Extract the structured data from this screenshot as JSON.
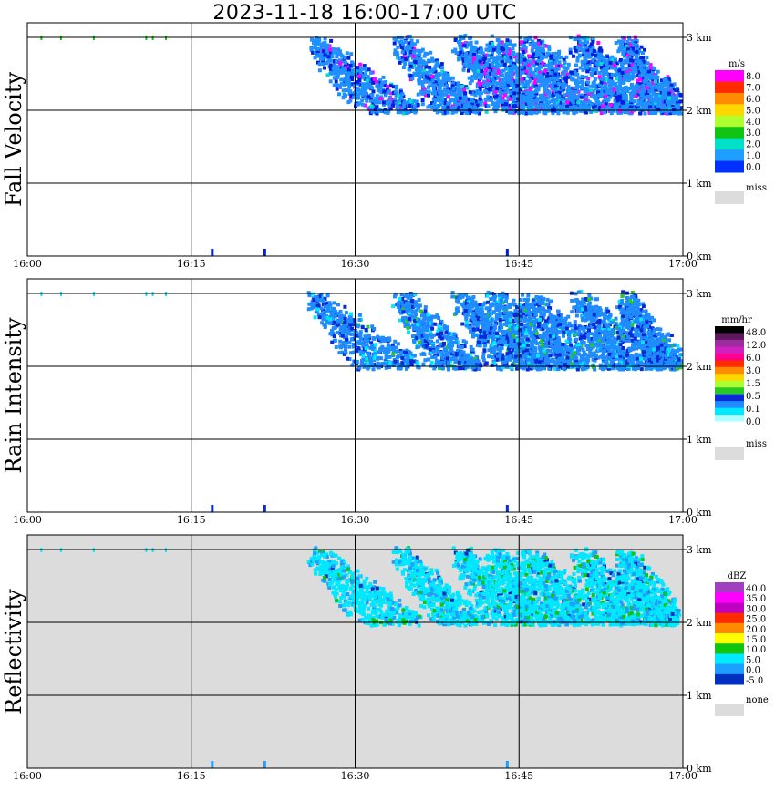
{
  "title": "2023-11-18   16:00-17:00 UTC",
  "chart_data": [
    {
      "type": "heatmap",
      "title": "Fall Velocity",
      "ylabel": "Fall Velocity",
      "x_ticks": [
        "16:00",
        "16:15",
        "16:30",
        "16:45",
        "17:00"
      ],
      "y_ticks": [
        "0 km",
        "1 km",
        "2 km",
        "3 km"
      ],
      "xlim": [
        "16:00",
        "17:00"
      ],
      "ylim_km": [
        0,
        3.2
      ],
      "grid": true,
      "background": "#ffffff",
      "legend": {
        "placement": "right",
        "unit": "m/s",
        "labels": [
          "8.0",
          "7.0",
          "6.0",
          "5.0",
          "4.0",
          "3.0",
          "2.0",
          "1.0",
          "0.0"
        ],
        "colors": [
          "#ff00ff",
          "#ff2a00",
          "#ff8c00",
          "#ffd700",
          "#adff2f",
          "#11c411",
          "#00e0c8",
          "#1e9fff",
          "#0030ff"
        ],
        "miss_label": "miss",
        "miss_color": "#dcdcdc"
      },
      "main_color": "#1e90ff",
      "accents": [
        "#0020e0",
        "#ff00ff",
        "#00e0c8"
      ]
    },
    {
      "type": "heatmap",
      "title": "Rain Intensity",
      "ylabel": "Rain Intensity",
      "x_ticks": [
        "16:00",
        "16:15",
        "16:30",
        "16:45",
        "17:00"
      ],
      "y_ticks": [
        "0 km",
        "1 km",
        "2 km",
        "3 km"
      ],
      "xlim": [
        "16:00",
        "17:00"
      ],
      "ylim_km": [
        0,
        3.2
      ],
      "grid": true,
      "background": "#ffffff",
      "legend": {
        "placement": "right",
        "unit": "mm/hr",
        "labels": [
          "48.0",
          "12.0",
          "6.0",
          "3.0",
          "1.5",
          "0.5",
          "0.1",
          "0.0"
        ],
        "colors": [
          "#000000",
          "#5c1a5c",
          "#9c2ca0",
          "#d020c0",
          "#ff0090",
          "#ff2a00",
          "#ff8c00",
          "#ffd700",
          "#adff2f",
          "#28c828",
          "#0a2ad8",
          "#1e8cff",
          "#00e8ff",
          "#aaffff",
          "#ffffff"
        ],
        "miss_label": "miss",
        "miss_color": "#dcdcdc"
      },
      "main_color": "#1e8cff",
      "accents": [
        "#0a2ad8",
        "#00e8ff",
        "#28c828"
      ]
    },
    {
      "type": "heatmap",
      "title": "Reflectivity",
      "ylabel": "Reflectivity",
      "x_ticks": [
        "16:00",
        "16:15",
        "16:30",
        "16:45",
        "17:00"
      ],
      "y_ticks": [
        "0 km",
        "1 km",
        "2 km",
        "3 km"
      ],
      "xlim": [
        "16:00",
        "17:00"
      ],
      "ylim_km": [
        0,
        3.2
      ],
      "grid": true,
      "background": "#dcdcdc",
      "legend": {
        "placement": "right",
        "unit": "dBZ",
        "labels": [
          "40.0",
          "35.0",
          "30.0",
          "25.0",
          "20.0",
          "15.0",
          "10.0",
          "5.0",
          "0.0",
          "-5.0"
        ],
        "colors": [
          "#a040c0",
          "#ff00ff",
          "#c000c0",
          "#ff2a00",
          "#ff8c00",
          "#ffff00",
          "#11c411",
          "#00e8ff",
          "#1e9fff",
          "#0030c0"
        ],
        "miss_label": "none",
        "miss_color": "#dcdcdc"
      },
      "main_color": "#00e8ff",
      "accents": [
        "#1e9fff",
        "#11c411",
        "#0030c0"
      ]
    }
  ]
}
